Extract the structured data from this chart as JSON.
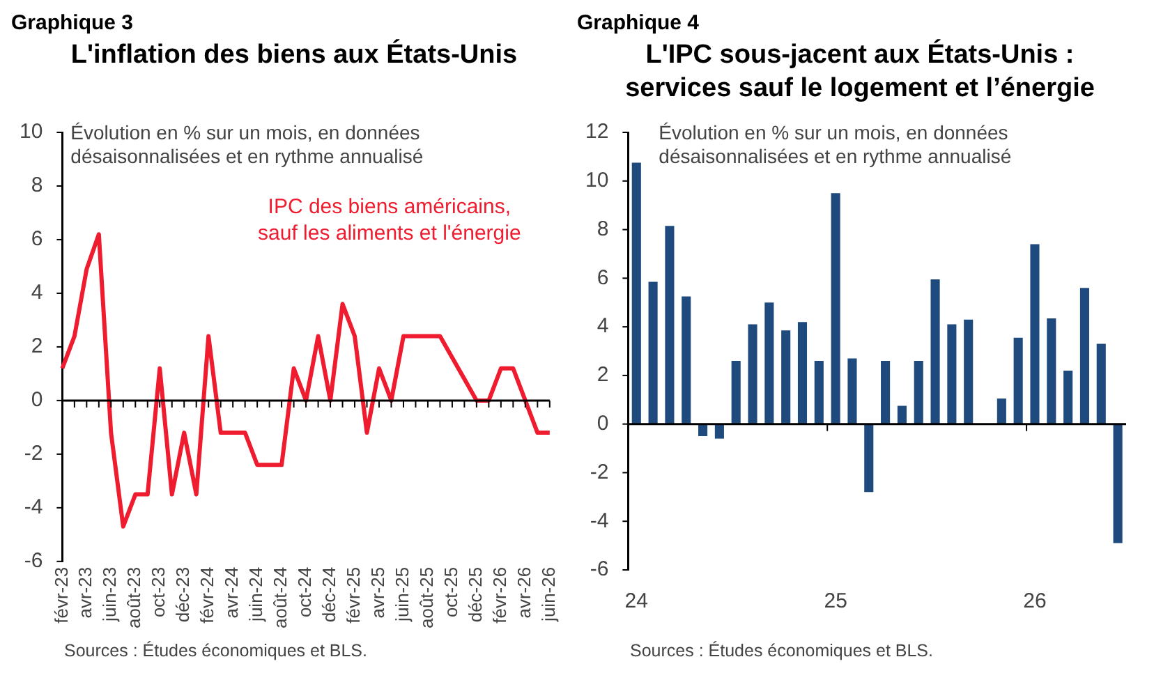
{
  "chart_data": [
    {
      "type": "line",
      "title": "L'inflation des biens aux États-Unis",
      "annotations": [
        "Graphique 3",
        "Évolution en % sur un mois, en données désaisonnalisées et en rythme annualisé",
        "Sources : Études économiques et BLS."
      ],
      "categories": [
        "févr-23",
        null,
        "avr-23",
        null,
        "juin-23",
        null,
        "août-23",
        null,
        "oct-23",
        null,
        "déc-23",
        null,
        "févr-24",
        null,
        "avr-24",
        null,
        "juin-24",
        null,
        "août-24",
        null,
        "oct-24",
        null,
        "déc-24",
        null,
        "févr-25",
        null,
        "avr-25",
        null,
        "juin-25",
        null,
        "août-25",
        null,
        "oct-25",
        null,
        "déc-25",
        null,
        "févr-26",
        null,
        "avr-26",
        null,
        "juin-26"
      ],
      "series": [
        {
          "name": "IPC des biens américains, sauf les aliments et l'énergie",
          "color": "#ee1c2e",
          "values": [
            1.2,
            2.4,
            4.9,
            6.2,
            -1.2,
            -4.7,
            -3.5,
            -3.5,
            1.2,
            -3.5,
            -1.2,
            -3.5,
            2.4,
            -1.2,
            -1.2,
            -1.2,
            -2.4,
            -2.4,
            -2.4,
            1.2,
            0,
            2.4,
            0,
            3.6,
            2.4,
            -1.2,
            1.2,
            0,
            2.4,
            2.4,
            2.4,
            2.4,
            1.6,
            0.8,
            0,
            0,
            1.2,
            1.2,
            0,
            -1.2,
            -1.2
          ]
        }
      ],
      "ylim": [
        -6,
        10
      ],
      "yticks": [
        -6,
        -4,
        -2,
        0,
        2,
        4,
        6,
        8,
        10
      ],
      "legend": false,
      "marker": "none",
      "line_style": "solid"
    },
    {
      "type": "bar",
      "title": "L'IPC sous-jacent aux États-Unis : services sauf le logement et l’énergie",
      "annotations": [
        "Graphique 4",
        "Évolution en % sur un mois, en données désaisonnalisées et en rythme annualisé",
        "Sources : Études économiques et BLS."
      ],
      "categories": [
        "24",
        null,
        null,
        null,
        null,
        null,
        null,
        null,
        null,
        null,
        null,
        null,
        "25",
        null,
        null,
        null,
        null,
        null,
        null,
        null,
        null,
        null,
        null,
        null,
        "26",
        null,
        null,
        null,
        null,
        null
      ],
      "series": [
        {
          "color": "#1f4a7e",
          "values": [
            10.75,
            5.85,
            8.15,
            5.25,
            -0.5,
            -0.6,
            2.6,
            4.1,
            5.0,
            3.85,
            4.2,
            2.6,
            9.5,
            2.7,
            -2.8,
            2.6,
            0.75,
            2.6,
            5.95,
            4.1,
            4.3,
            null,
            1.05,
            3.55,
            7.4,
            4.35,
            2.2,
            5.6,
            3.3,
            -4.9
          ]
        }
      ],
      "ylim": [
        -6,
        12
      ],
      "yticks": [
        -6,
        -4,
        -2,
        0,
        2,
        4,
        6,
        8,
        10,
        12
      ],
      "legend": false
    }
  ]
}
